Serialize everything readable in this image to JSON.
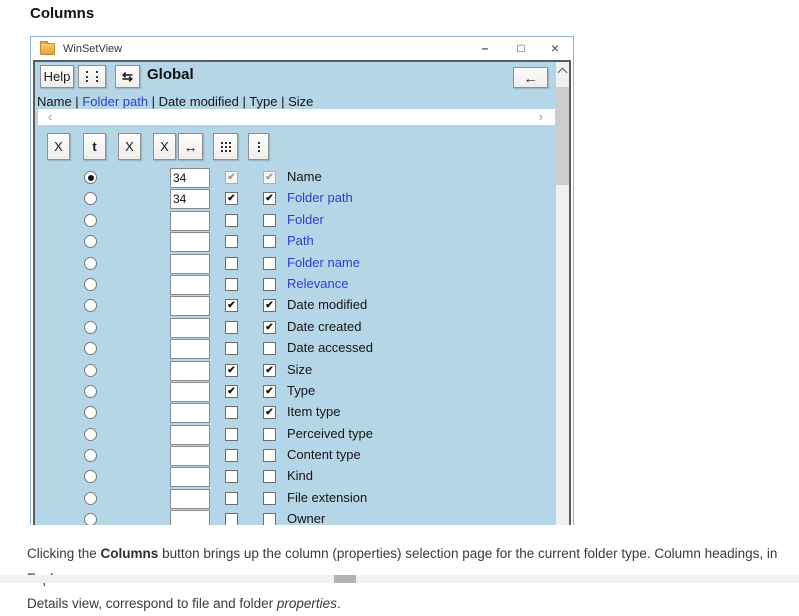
{
  "page": {
    "heading": "Columns",
    "caption": {
      "line1": {
        "pre": "Clicking the ",
        "bold": "Columns",
        "post": " button brings up the column (properties) selection page for the current folder type. Column headings, in Explorer"
      },
      "line2": {
        "pre": "Details view, correspond to file and folder ",
        "italic": "properties",
        "post": "."
      }
    },
    "colors": {
      "content_bg": "#b5d6e7",
      "window_border": "#8fb4d6",
      "link_blue": "#2b3fd0",
      "folder_icon": "#e9a33c"
    }
  },
  "window": {
    "title": "WinSetView",
    "controls": {
      "minimize": "–",
      "maximize": "□",
      "close": "×"
    },
    "toolbar": {
      "help_label": "Help",
      "swap_icon_glyph": "⇆",
      "scope_label": "Global",
      "back_icon_glyph": "←"
    },
    "column_summary": {
      "items": [
        "Name",
        "Folder path",
        "Date modified",
        "Type",
        "Size"
      ],
      "separator": " | ",
      "highlighted": "Folder path"
    },
    "hscroll": {
      "left_glyph": "‹",
      "right_glyph": "›"
    },
    "action_bar": {
      "x_buttons": [
        {
          "label": "X",
          "bold": false
        },
        {
          "label": "t",
          "bold": true
        },
        {
          "label": "X",
          "bold": false
        },
        {
          "label": "X",
          "bold": false
        }
      ],
      "width_button_glyph": "↔"
    },
    "check_glyph": "✔",
    "rows": [
      {
        "label": "Name",
        "link": false,
        "radio": "on",
        "input": "34",
        "cb1": "checked-dim",
        "cb2": "checked-dim"
      },
      {
        "label": "Folder path",
        "link": true,
        "radio": "off",
        "input": "34",
        "cb1": "checked",
        "cb2": "checked"
      },
      {
        "label": "Folder",
        "link": true,
        "radio": "off",
        "input": "",
        "cb1": "unchecked",
        "cb2": "unchecked"
      },
      {
        "label": "Path",
        "link": true,
        "radio": "off",
        "input": "",
        "cb1": "unchecked",
        "cb2": "unchecked"
      },
      {
        "label": "Folder name",
        "link": true,
        "radio": "off",
        "input": "",
        "cb1": "unchecked",
        "cb2": "unchecked"
      },
      {
        "label": "Relevance",
        "link": true,
        "radio": "off",
        "input": "",
        "cb1": "unchecked",
        "cb2": "unchecked"
      },
      {
        "label": "Date modified",
        "link": false,
        "radio": "off",
        "input": "",
        "cb1": "checked",
        "cb2": "checked"
      },
      {
        "label": "Date created",
        "link": false,
        "radio": "off",
        "input": "",
        "cb1": "unchecked",
        "cb2": "checked"
      },
      {
        "label": "Date accessed",
        "link": false,
        "radio": "off",
        "input": "",
        "cb1": "unchecked",
        "cb2": "unchecked"
      },
      {
        "label": "Size",
        "link": false,
        "radio": "off",
        "input": "",
        "cb1": "checked",
        "cb2": "checked"
      },
      {
        "label": "Type",
        "link": false,
        "radio": "off",
        "input": "",
        "cb1": "checked",
        "cb2": "checked"
      },
      {
        "label": "Item type",
        "link": false,
        "radio": "off",
        "input": "",
        "cb1": "unchecked",
        "cb2": "checked"
      },
      {
        "label": "Perceived type",
        "link": false,
        "radio": "off",
        "input": "",
        "cb1": "unchecked",
        "cb2": "unchecked"
      },
      {
        "label": "Content type",
        "link": false,
        "radio": "off",
        "input": "",
        "cb1": "unchecked",
        "cb2": "unchecked"
      },
      {
        "label": "Kind",
        "link": false,
        "radio": "off",
        "input": "",
        "cb1": "unchecked",
        "cb2": "unchecked"
      },
      {
        "label": "File extension",
        "link": false,
        "radio": "off",
        "input": "",
        "cb1": "unchecked",
        "cb2": "unchecked"
      },
      {
        "label": "Owner",
        "link": false,
        "radio": "off",
        "input": "",
        "cb1": "unchecked",
        "cb2": "unchecked"
      }
    ]
  }
}
